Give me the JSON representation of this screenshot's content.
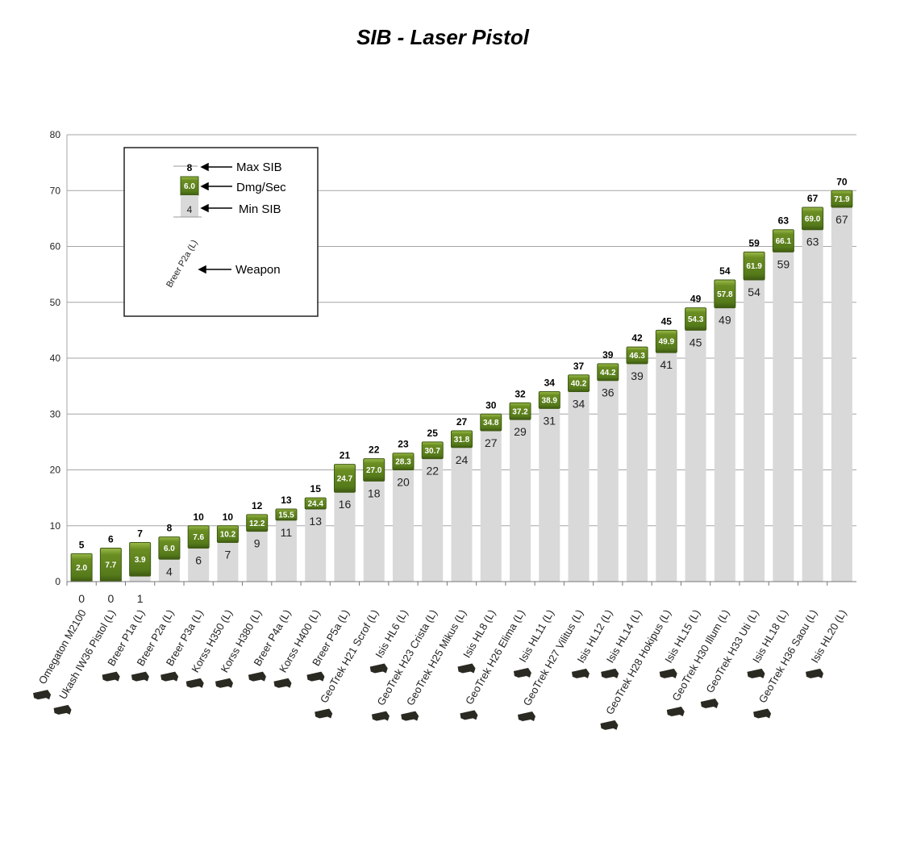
{
  "chart_data": {
    "type": "bar",
    "title": "SIB - Laser Pistol",
    "ylim": [
      0,
      80
    ],
    "yticks": [
      0,
      10,
      20,
      30,
      40,
      50,
      60,
      70,
      80
    ],
    "grid": true,
    "categories": [
      "Omegaton M2100",
      "Ukash IW36 Pistol (L)",
      "Breer P1a (L)",
      "Breer P2a (L)",
      "Breer P3a (L)",
      "Korss H350 (L)",
      "Korss H380 (L)",
      "Breer P4a (L)",
      "Korss H400 (L)",
      "Breer P5a (L)",
      "GeoTrek H21 Scrof (L)",
      "Isis HL6 (L)",
      "GeoTrek H23 Crista (L)",
      "GeoTrek H25 Mikus (L)",
      "Isis HL8 (L)",
      "GeoTrek H26 Elima (L)",
      "Isis HL11 (L)",
      "GeoTrek H27 Vilitus (L)",
      "Isis HL12 (L)",
      "Isis HL14 (L)",
      "GeoTrek H28 Hokipus (L)",
      "Isis HL15 (L)",
      "GeoTrek H30 Illum (L)",
      "GeoTrek H33 Uti (L)",
      "Isis HL18 (L)",
      "GeoTrek H36 Saou (L)",
      "Isis HL20 (L)"
    ],
    "series": [
      {
        "name": "Max SIB",
        "values": [
          5,
          6,
          7,
          8,
          10,
          10,
          12,
          13,
          15,
          21,
          22,
          23,
          25,
          27,
          30,
          32,
          34,
          37,
          39,
          42,
          45,
          49,
          54,
          59,
          63,
          67,
          70
        ]
      },
      {
        "name": "Dmg/Sec",
        "values": [
          "2.0",
          "7.7",
          "3.9",
          "6.0",
          "7.6",
          "10.2",
          "12.2",
          "15.5",
          "24.4",
          "24.7",
          "27.0",
          "28.3",
          "30.7",
          "31.8",
          "34.8",
          "37.2",
          "38.9",
          "40.2",
          "44.2",
          "46.3",
          "49.9",
          "54.3",
          "57.8",
          "61.9",
          "66.1",
          "69.0",
          "71.9"
        ]
      },
      {
        "name": "Min SIB",
        "values": [
          0,
          0,
          1,
          4,
          6,
          7,
          9,
          11,
          13,
          16,
          18,
          20,
          22,
          24,
          27,
          29,
          31,
          34,
          36,
          39,
          41,
          45,
          49,
          54,
          59,
          63,
          67
        ]
      }
    ],
    "legend": {
      "placement": "top-left",
      "example": {
        "max": "8",
        "dmg": "6.0",
        "min": "4",
        "weapon": "Breer P2a (L)"
      },
      "entries": [
        "Max SIB",
        "Dmg/Sec",
        "Min SIB",
        "Weapon"
      ]
    },
    "colors": {
      "min_bar": "#d9d9d9",
      "dmg_box": "#6b8e23",
      "dmg_box_dark": "#3e5a12",
      "grid": "#a6a6a6",
      "icon": "#2a2a22"
    }
  }
}
